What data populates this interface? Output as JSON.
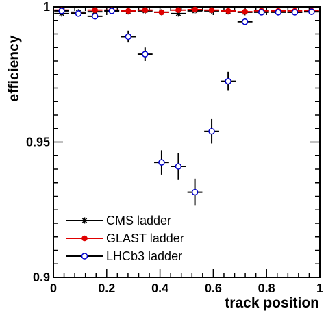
{
  "chart_data": {
    "type": "scatter",
    "title": "",
    "xlabel": "track position",
    "ylabel": "efficiency",
    "xlim": [
      0,
      1
    ],
    "ylim": [
      0.9,
      1.0
    ],
    "x_ticks": [
      0,
      0.2,
      0.4,
      0.6,
      0.8,
      1
    ],
    "x_tick_labels": [
      "0",
      "0.2",
      "0.4",
      "0.6",
      "0.8",
      "1"
    ],
    "y_ticks": [
      0.9,
      0.95,
      1.0
    ],
    "y_tick_labels": [
      "0.9",
      "0.95",
      "1"
    ],
    "x_error": 0.028,
    "legend_position": "bottom-left",
    "series": [
      {
        "name": "CMS ladder",
        "marker": "star",
        "color": "#000000",
        "x": [
          0.031,
          0.094,
          0.156,
          0.219,
          0.281,
          0.344,
          0.406,
          0.469,
          0.531,
          0.594,
          0.656,
          0.719,
          0.781,
          0.844,
          0.906,
          0.969
        ],
        "y": [
          0.9975,
          0.998,
          0.9982,
          0.9985,
          0.9983,
          0.9985,
          0.998,
          0.9975,
          0.9985,
          0.9985,
          0.9983,
          0.998,
          0.9985,
          0.9983,
          0.998,
          0.9982
        ],
        "y_err": [
          0.0005,
          0.0005,
          0.0005,
          0.0005,
          0.0005,
          0.0005,
          0.0005,
          0.0005,
          0.0005,
          0.0005,
          0.0005,
          0.0005,
          0.0005,
          0.0005,
          0.0005,
          0.0005
        ]
      },
      {
        "name": "GLAST ladder",
        "marker": "circle-filled",
        "color": "#e00000",
        "x": [
          0.031,
          0.094,
          0.156,
          0.219,
          0.281,
          0.344,
          0.406,
          0.469,
          0.531,
          0.594,
          0.656,
          0.719,
          0.781,
          0.844,
          0.906,
          0.969
        ],
        "y": [
          0.9988,
          0.9975,
          0.9988,
          0.9988,
          0.9985,
          0.9988,
          0.998,
          0.9988,
          0.999,
          0.9988,
          0.9985,
          0.9982,
          0.9985,
          0.9985,
          0.9985,
          0.9985
        ],
        "y_err": [
          0.0005,
          0.0005,
          0.0005,
          0.0005,
          0.0005,
          0.0005,
          0.0005,
          0.0005,
          0.0005,
          0.0005,
          0.0005,
          0.0005,
          0.0005,
          0.0005,
          0.0005,
          0.0005
        ]
      },
      {
        "name": "LHCb3 ladder",
        "marker": "circle-open",
        "color": "#0000cc",
        "x": [
          0.031,
          0.094,
          0.156,
          0.219,
          0.281,
          0.344,
          0.406,
          0.469,
          0.531,
          0.594,
          0.656,
          0.719,
          0.781,
          0.844,
          0.906,
          0.969
        ],
        "y": [
          0.9985,
          0.9975,
          0.9965,
          0.9985,
          0.989,
          0.9825,
          0.9425,
          0.941,
          0.9315,
          0.954,
          0.9725,
          0.9945,
          0.998,
          0.998,
          0.998,
          0.9982
        ],
        "y_err": [
          0.0005,
          0.0005,
          0.0008,
          0.0005,
          0.0022,
          0.0025,
          0.0045,
          0.005,
          0.005,
          0.0045,
          0.0035,
          0.0012,
          0.0005,
          0.0005,
          0.0005,
          0.0005
        ]
      }
    ]
  }
}
